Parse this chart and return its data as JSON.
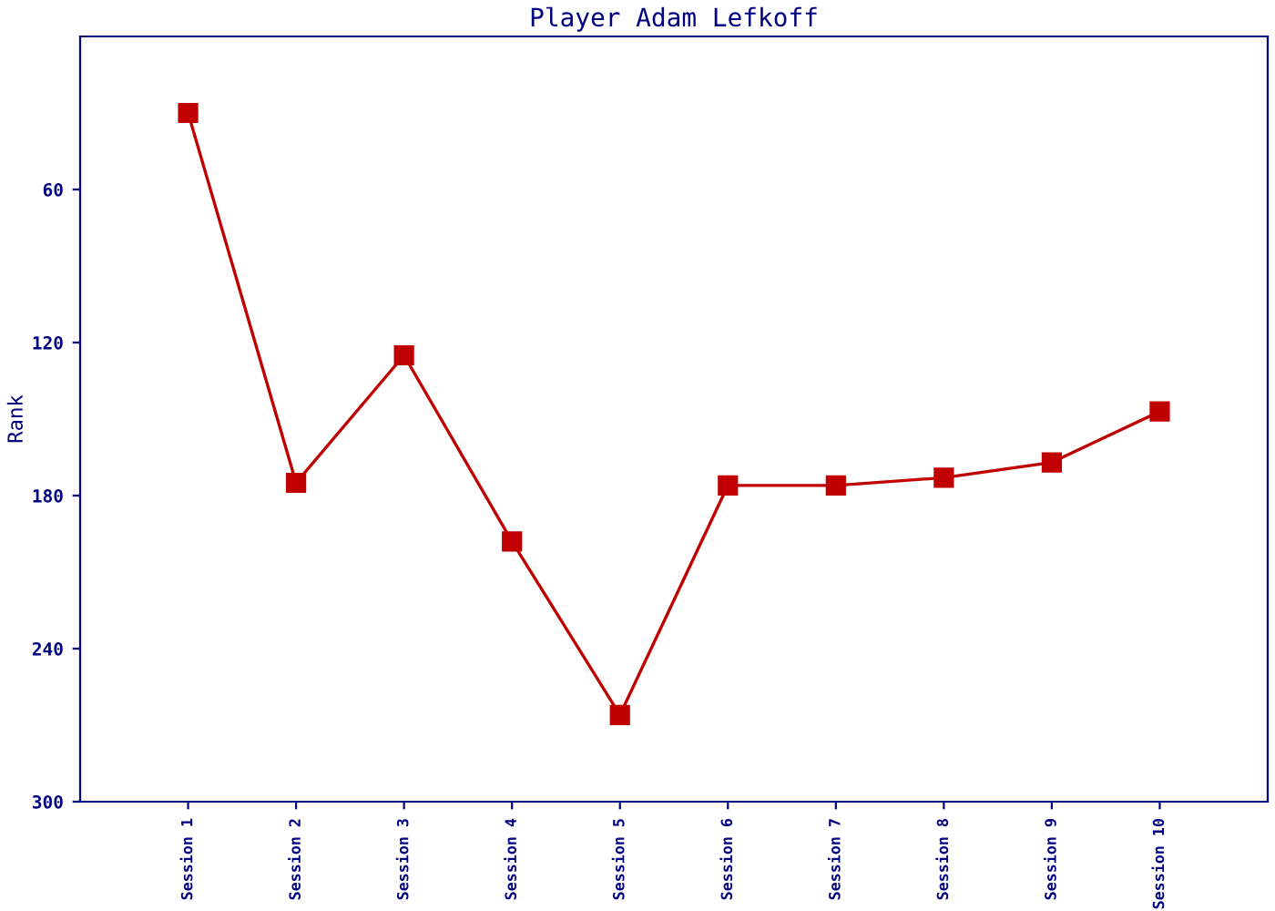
{
  "chart_data": {
    "type": "line",
    "title": "Player Adam Lefkoff",
    "ylabel": "Rank",
    "categories": [
      "Session 1",
      "Session 2",
      "Session 3",
      "Session 4",
      "Session 5",
      "Session 6",
      "Session 7",
      "Session 8",
      "Session 9",
      "Session 10"
    ],
    "series": [
      {
        "color": "#c00000",
        "values": [
          30,
          175,
          125,
          198,
          266,
          176,
          176,
          173,
          167,
          147
        ]
      }
    ],
    "ylim": [
      300,
      0
    ],
    "yticks": [
      60,
      120,
      180,
      240,
      300
    ],
    "grid": false,
    "legend": false,
    "marker": "square",
    "line_style": "solid"
  }
}
